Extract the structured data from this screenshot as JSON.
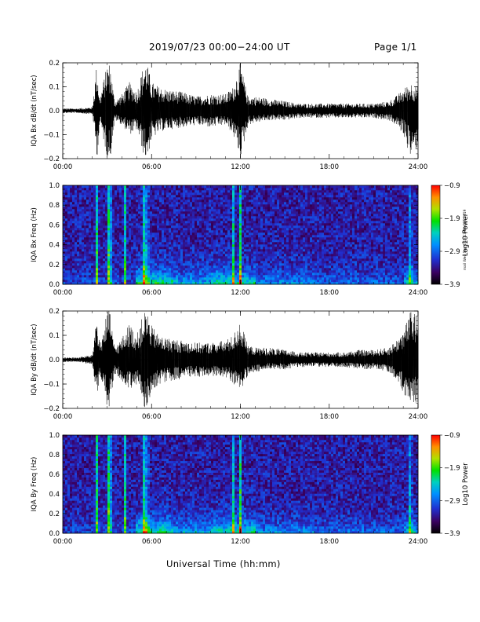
{
  "header": {
    "title": "2019/07/23  00:00−24:00 UT",
    "page": "Page 1/1"
  },
  "footer": {
    "x_axis_title": "Universal Time (hh:mm)",
    "side_stamp": "mail Wed Sep 4 15:13:08 CST 2019"
  },
  "chart_data": [
    {
      "type": "line",
      "ylabel": "IQA Bx dB/dt (nT/sec)",
      "ylim": [
        -0.2,
        0.2
      ],
      "yticks": [
        "0.2",
        "0.1",
        "0.0",
        "−0.1",
        "−0.2"
      ],
      "xlim": [
        0,
        24
      ],
      "xticks": [
        "00:00",
        "06:00",
        "12:00",
        "18:00",
        "24:00"
      ],
      "series": [
        {
          "x": [
            0,
            1,
            2,
            2.3,
            2.5,
            3.0,
            3.2,
            3.5,
            4.0,
            4.5,
            5.0,
            5.5,
            5.7,
            6.0,
            6.5,
            7,
            8,
            9,
            10,
            11,
            11.5,
            12,
            12.5,
            13,
            14,
            15,
            16,
            17,
            18,
            19,
            20,
            21,
            22,
            22.5,
            23,
            23.5,
            24
          ],
          "y_upper": [
            0.01,
            0.01,
            0.015,
            0.2,
            0.05,
            0.2,
            0.2,
            0.04,
            0.07,
            0.12,
            0.08,
            0.2,
            0.2,
            0.12,
            0.1,
            0.09,
            0.08,
            0.06,
            0.07,
            0.07,
            0.1,
            0.2,
            0.06,
            0.06,
            0.05,
            0.04,
            0.03,
            0.03,
            0.03,
            0.03,
            0.03,
            0.03,
            0.04,
            0.06,
            0.09,
            0.12,
            0.1
          ],
          "y_lower": [
            -0.01,
            -0.01,
            -0.015,
            -0.2,
            -0.05,
            -0.2,
            -0.2,
            -0.04,
            -0.06,
            -0.1,
            -0.08,
            -0.2,
            -0.2,
            -0.12,
            -0.09,
            -0.08,
            -0.07,
            -0.06,
            -0.07,
            -0.06,
            -0.1,
            -0.2,
            -0.06,
            -0.05,
            -0.04,
            -0.04,
            -0.03,
            -0.03,
            -0.03,
            -0.03,
            -0.03,
            -0.03,
            -0.04,
            -0.06,
            -0.1,
            -0.2,
            -0.15
          ]
        }
      ]
    },
    {
      "type": "heatmap",
      "ylabel": "IQA Bx Freq (Hz)",
      "ylim": [
        0.0,
        1.0
      ],
      "yticks": [
        "1.0",
        "0.8",
        "0.6",
        "0.4",
        "0.2",
        "0.0"
      ],
      "xlim": [
        0,
        24
      ],
      "xticks": [
        "00:00",
        "06:00",
        "12:00",
        "18:00",
        "24:00"
      ],
      "colorbar": {
        "label": "Log10 Power",
        "ticks": [
          "−0.9",
          "−1.9",
          "−2.9",
          "−3.9"
        ],
        "range": [
          -3.9,
          -0.9
        ]
      },
      "broadband_events_hours": [
        2.3,
        3.1,
        3.2,
        4.2,
        5.5,
        5.7,
        11.5,
        12.0,
        23.5
      ]
    },
    {
      "type": "line",
      "ylabel": "IQA By dB/dt (nT/sec)",
      "ylim": [
        -0.2,
        0.2
      ],
      "yticks": [
        "0.2",
        "0.1",
        "0.0",
        "−0.1",
        "−0.2"
      ],
      "xlim": [
        0,
        24
      ],
      "xticks": [
        "00:00",
        "06:00",
        "12:00",
        "18:00",
        "24:00"
      ],
      "series": [
        {
          "x": [
            0,
            1,
            2,
            2.3,
            2.5,
            3.0,
            3.2,
            3.5,
            4.0,
            4.5,
            5.0,
            5.5,
            5.7,
            6.0,
            6.5,
            7,
            8,
            9,
            10,
            11,
            11.5,
            12,
            12.5,
            13,
            14,
            15,
            16,
            17,
            18,
            19,
            20,
            21,
            22,
            22.5,
            23,
            23.5,
            24
          ],
          "y_upper": [
            0.01,
            0.01,
            0.02,
            0.2,
            0.06,
            0.2,
            0.2,
            0.05,
            0.09,
            0.15,
            0.1,
            0.2,
            0.2,
            0.14,
            0.1,
            0.09,
            0.08,
            0.07,
            0.07,
            0.08,
            0.1,
            0.16,
            0.06,
            0.05,
            0.05,
            0.04,
            0.03,
            0.03,
            0.03,
            0.03,
            0.04,
            0.04,
            0.05,
            0.08,
            0.12,
            0.2,
            0.18
          ],
          "y_lower": [
            -0.01,
            -0.01,
            -0.02,
            -0.2,
            -0.08,
            -0.2,
            -0.2,
            -0.06,
            -0.09,
            -0.12,
            -0.1,
            -0.2,
            -0.2,
            -0.14,
            -0.1,
            -0.09,
            -0.08,
            -0.07,
            -0.07,
            -0.07,
            -0.1,
            -0.14,
            -0.06,
            -0.05,
            -0.04,
            -0.04,
            -0.03,
            -0.03,
            -0.03,
            -0.03,
            -0.04,
            -0.04,
            -0.05,
            -0.08,
            -0.15,
            -0.2,
            -0.18
          ]
        }
      ]
    },
    {
      "type": "heatmap",
      "ylabel": "IQA By Freq (Hz)",
      "ylim": [
        0.0,
        1.0
      ],
      "yticks": [
        "1.0",
        "0.8",
        "0.6",
        "0.4",
        "0.2",
        "0.0"
      ],
      "xlim": [
        0,
        24
      ],
      "xticks": [
        "00:00",
        "06:00",
        "12:00",
        "18:00",
        "24:00"
      ],
      "colorbar": {
        "label": "Log10 Power",
        "ticks": [
          "−0.9",
          "−1.9",
          "−2.9",
          "−3.9"
        ],
        "range": [
          -3.9,
          -0.9
        ]
      },
      "broadband_events_hours": [
        2.3,
        3.1,
        3.2,
        4.2,
        5.5,
        5.7,
        11.5,
        12.0,
        23.5
      ]
    }
  ]
}
